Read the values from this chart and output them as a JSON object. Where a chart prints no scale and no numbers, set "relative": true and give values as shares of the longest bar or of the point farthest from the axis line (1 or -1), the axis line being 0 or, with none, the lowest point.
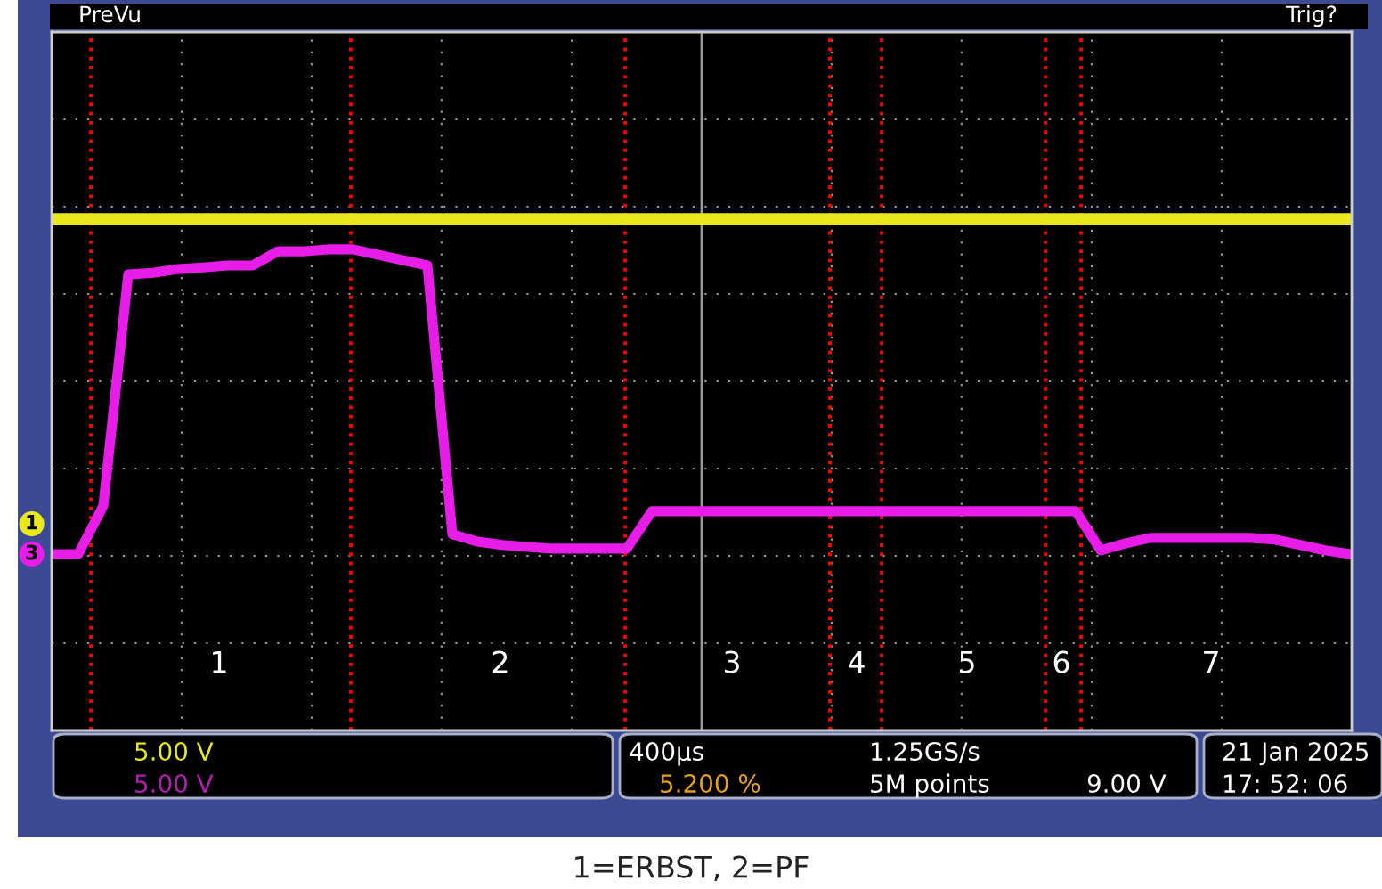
{
  "chart_data": {
    "type": "line",
    "relative": true,
    "grid": true,
    "legend": false,
    "marker": "none",
    "line_style": "solid",
    "categories": [
      null,
      null,
      null,
      null,
      null,
      null,
      null,
      null,
      null,
      null,
      null,
      null,
      null,
      null,
      null,
      null,
      null,
      null,
      null,
      null,
      null,
      null,
      null,
      null,
      null,
      null,
      null,
      null,
      null,
      null,
      null,
      null,
      null,
      null,
      null,
      null,
      null,
      null,
      null,
      null,
      null,
      null,
      null,
      null,
      null,
      null,
      null,
      null,
      null,
      null,
      null,
      null,
      null
    ],
    "series": [
      {
        "name": "1",
        "color": "#e8e81c",
        "values": [
          1,
          1,
          1,
          1,
          1,
          1,
          1,
          1,
          1,
          1,
          1,
          1,
          1,
          1,
          1,
          1,
          1,
          1,
          1,
          1,
          1,
          1,
          1,
          1,
          1,
          1,
          1,
          1,
          1,
          1,
          1,
          1,
          1,
          1,
          1,
          1,
          1,
          1,
          1,
          1,
          1,
          1,
          1,
          1,
          1,
          1,
          1,
          1,
          1,
          1,
          1,
          1,
          1
        ]
      },
      {
        "name": "3",
        "color": "#e81ee8",
        "values": [
          0,
          0,
          0.144,
          0.835,
          0.84,
          0.851,
          0.856,
          0.862,
          0.862,
          0.904,
          0.904,
          0.91,
          0.91,
          0.894,
          0.878,
          0.862,
          0.059,
          0.037,
          0.027,
          0.021,
          0.016,
          0.016,
          0.016,
          0.016,
          0.128,
          0.128,
          0.128,
          0.128,
          0.128,
          0.128,
          0.128,
          0.128,
          0.128,
          0.128,
          0.128,
          0.128,
          0.128,
          0.128,
          0.128,
          0.128,
          0.128,
          0.128,
          0.011,
          0.032,
          0.048,
          0.048,
          0.048,
          0.048,
          0.048,
          0.043,
          0.027,
          0.011,
          0
        ]
      }
    ],
    "annotations": [
      "1",
      "2",
      "3",
      "4",
      "5",
      "6",
      "7",
      "PreVu",
      "Trig?",
      "5.00 V",
      "5.00 V",
      "400µs",
      "5.200 %",
      "1.25GS/s",
      "5M points",
      "9.00 V",
      "21 Jan 2025",
      "17: 52: 06",
      "1=ERBST, 2=PF"
    ]
  }
}
